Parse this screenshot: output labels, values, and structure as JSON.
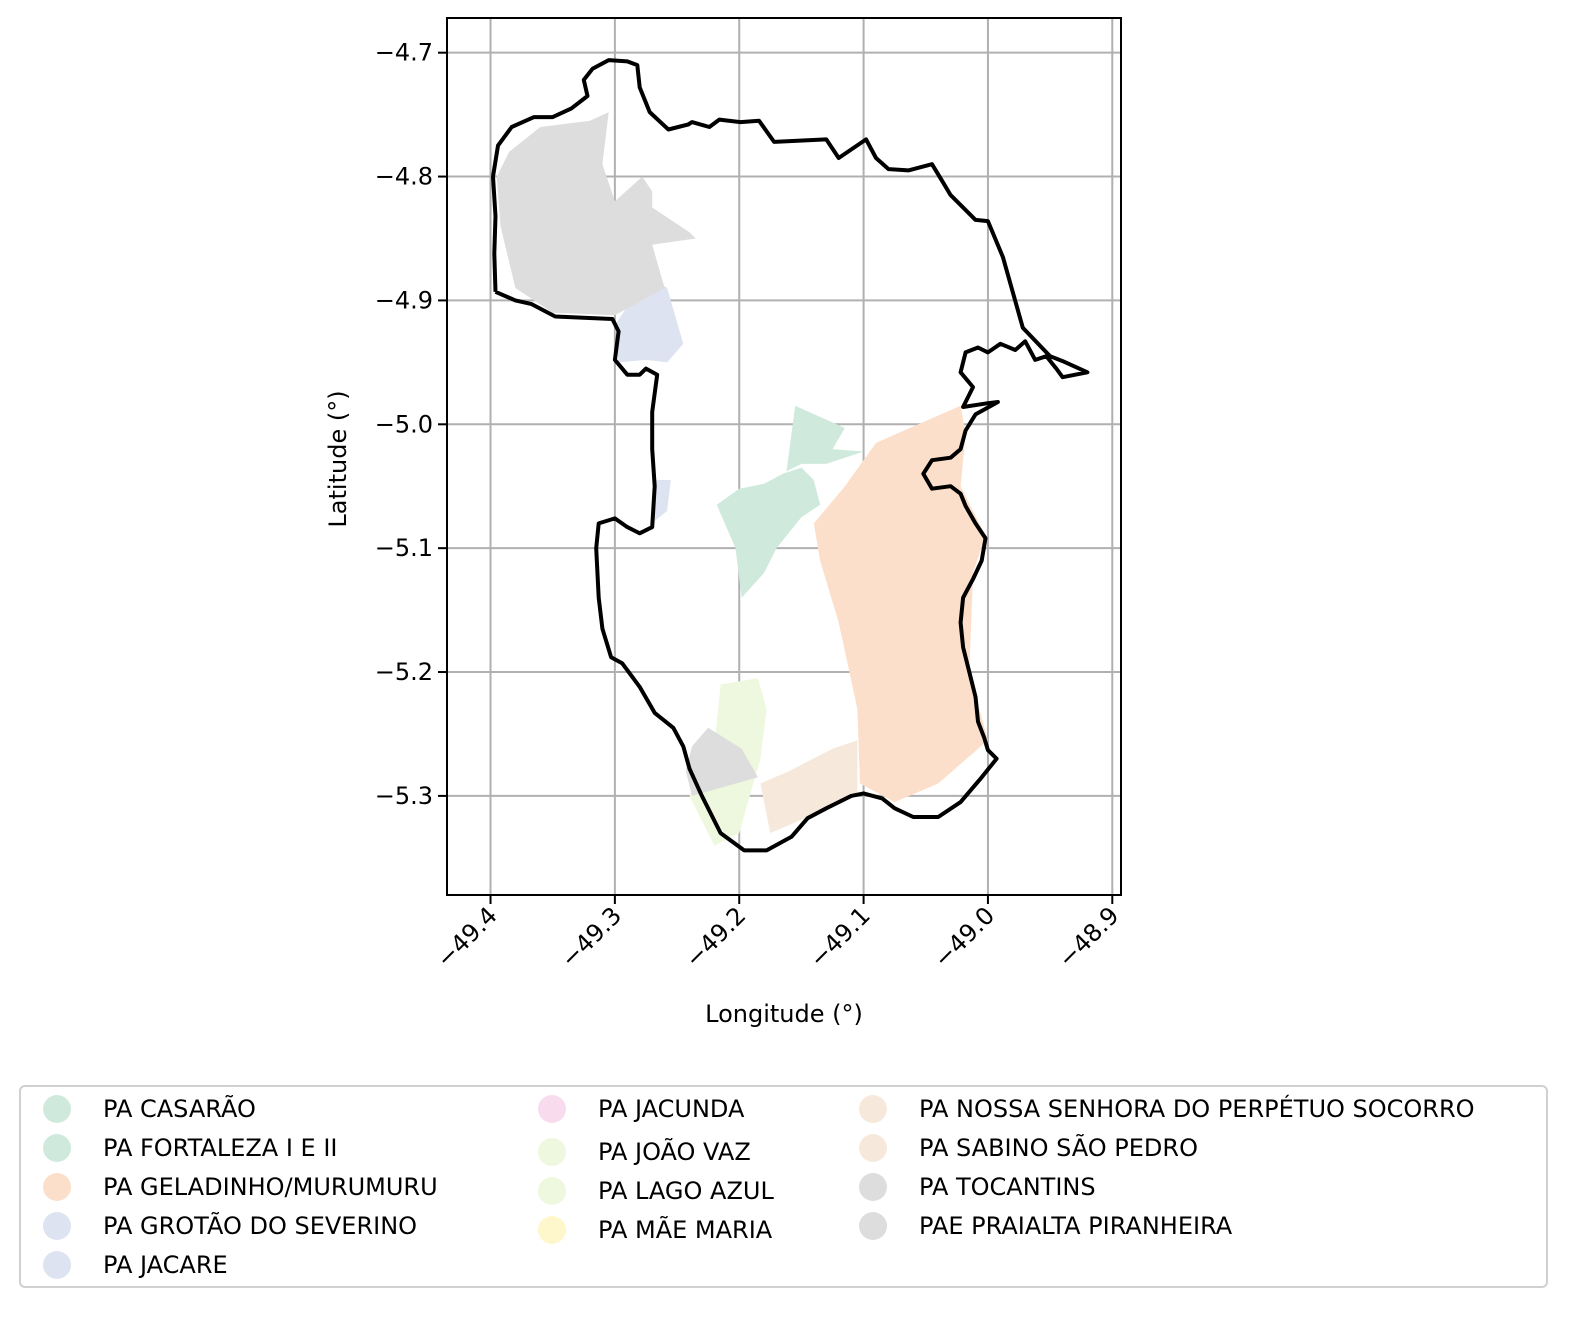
{
  "chart_data": {
    "type": "map",
    "xlabel": "Longitude (°)",
    "ylabel": "Latitude (°)",
    "xlim": [
      -49.435,
      -48.893
    ],
    "ylim": [
      -5.38,
      -4.672
    ],
    "x_ticks": [
      {
        "value": -49.4,
        "label": "−49.4"
      },
      {
        "value": -49.3,
        "label": "−49.3"
      },
      {
        "value": -49.2,
        "label": "−49.2"
      },
      {
        "value": -49.1,
        "label": "−49.1"
      },
      {
        "value": -49.0,
        "label": "−49.0"
      },
      {
        "value": -48.9,
        "label": "−48.9"
      }
    ],
    "y_ticks": [
      {
        "value": -4.7,
        "label": "−4.7"
      },
      {
        "value": -4.8,
        "label": "−4.8"
      },
      {
        "value": -4.9,
        "label": "−4.9"
      },
      {
        "value": -5.0,
        "label": "−5.0"
      },
      {
        "value": -5.1,
        "label": "−5.1"
      },
      {
        "value": -5.2,
        "label": "−5.2"
      },
      {
        "value": -5.3,
        "label": "−5.3"
      }
    ],
    "grid": true,
    "legend_position": "bottom",
    "boundary": [
      [
        -49.396,
        -4.893
      ],
      [
        -49.397,
        -4.862
      ],
      [
        -49.396,
        -4.832
      ],
      [
        -49.398,
        -4.8
      ],
      [
        -49.394,
        -4.775
      ],
      [
        -49.383,
        -4.76
      ],
      [
        -49.365,
        -4.752
      ],
      [
        -49.35,
        -4.752
      ],
      [
        -49.335,
        -4.745
      ],
      [
        -49.322,
        -4.735
      ],
      [
        -49.325,
        -4.722
      ],
      [
        -49.318,
        -4.713
      ],
      [
        -49.305,
        -4.706
      ],
      [
        -49.29,
        -4.707
      ],
      [
        -49.282,
        -4.71
      ],
      [
        -49.28,
        -4.728
      ],
      [
        -49.272,
        -4.748
      ],
      [
        -49.257,
        -4.762
      ],
      [
        -49.241,
        -4.758
      ],
      [
        -49.238,
        -4.756
      ],
      [
        -49.224,
        -4.76
      ],
      [
        -49.216,
        -4.754
      ],
      [
        -49.199,
        -4.756
      ],
      [
        -49.184,
        -4.755
      ],
      [
        -49.172,
        -4.772
      ],
      [
        -49.13,
        -4.77
      ],
      [
        -49.12,
        -4.785
      ],
      [
        -49.098,
        -4.77
      ],
      [
        -49.09,
        -4.785
      ],
      [
        -49.08,
        -4.794
      ],
      [
        -49.064,
        -4.795
      ],
      [
        -49.045,
        -4.79
      ],
      [
        -49.036,
        -4.805
      ],
      [
        -49.03,
        -4.815
      ],
      [
        -49.015,
        -4.83
      ],
      [
        -49.01,
        -4.835
      ],
      [
        -49.0,
        -4.836
      ],
      [
        -48.988,
        -4.865
      ],
      [
        -48.972,
        -4.922
      ],
      [
        -48.95,
        -4.945
      ],
      [
        -48.94,
        -4.949
      ],
      [
        -48.92,
        -4.958
      ],
      [
        -48.94,
        -4.962
      ],
      [
        -48.945,
        -4.955
      ],
      [
        -48.953,
        -4.945
      ],
      [
        -48.962,
        -4.948
      ],
      [
        -48.97,
        -4.933
      ],
      [
        -48.978,
        -4.94
      ],
      [
        -48.99,
        -4.935
      ],
      [
        -49.0,
        -4.942
      ],
      [
        -49.008,
        -4.938
      ],
      [
        -49.018,
        -4.942
      ],
      [
        -49.022,
        -4.958
      ],
      [
        -49.012,
        -4.97
      ],
      [
        -49.02,
        -4.986
      ],
      [
        -49.0,
        -4.983
      ],
      [
        -48.992,
        -4.982
      ],
      [
        -49.01,
        -4.992
      ],
      [
        -49.018,
        -5.005
      ],
      [
        -49.022,
        -5.02
      ],
      [
        -49.03,
        -5.027
      ],
      [
        -49.045,
        -5.029
      ],
      [
        -49.052,
        -5.04
      ],
      [
        -49.045,
        -5.052
      ],
      [
        -49.03,
        -5.05
      ],
      [
        -49.022,
        -5.056
      ],
      [
        -49.018,
        -5.066
      ],
      [
        -49.01,
        -5.08
      ],
      [
        -49.002,
        -5.092
      ],
      [
        -49.005,
        -5.11
      ],
      [
        -49.012,
        -5.125
      ],
      [
        -49.02,
        -5.14
      ],
      [
        -49.022,
        -5.16
      ],
      [
        -49.02,
        -5.18
      ],
      [
        -49.015,
        -5.2
      ],
      [
        -49.01,
        -5.22
      ],
      [
        -49.008,
        -5.24
      ],
      [
        -49.003,
        -5.253
      ],
      [
        -49.0,
        -5.263
      ],
      [
        -48.993,
        -5.27
      ],
      [
        -49.005,
        -5.285
      ],
      [
        -49.022,
        -5.305
      ],
      [
        -49.04,
        -5.317
      ],
      [
        -49.06,
        -5.317
      ],
      [
        -49.075,
        -5.31
      ],
      [
        -49.085,
        -5.302
      ],
      [
        -49.1,
        -5.298
      ],
      [
        -49.11,
        -5.3
      ],
      [
        -49.13,
        -5.31
      ],
      [
        -49.145,
        -5.318
      ],
      [
        -49.158,
        -5.333
      ],
      [
        -49.178,
        -5.344
      ],
      [
        -49.196,
        -5.344
      ],
      [
        -49.215,
        -5.33
      ],
      [
        -49.23,
        -5.3
      ],
      [
        -49.24,
        -5.278
      ],
      [
        -49.245,
        -5.26
      ],
      [
        -49.253,
        -5.245
      ],
      [
        -49.268,
        -5.233
      ],
      [
        -49.28,
        -5.212
      ],
      [
        -49.294,
        -5.193
      ],
      [
        -49.303,
        -5.188
      ],
      [
        -49.31,
        -5.165
      ],
      [
        -49.313,
        -5.14
      ],
      [
        -49.315,
        -5.1
      ],
      [
        -49.313,
        -5.08
      ],
      [
        -49.3,
        -5.076
      ],
      [
        -49.29,
        -5.083
      ],
      [
        -49.28,
        -5.088
      ],
      [
        -49.27,
        -5.083
      ],
      [
        -49.268,
        -5.05
      ],
      [
        -49.27,
        -5.02
      ],
      [
        -49.27,
        -4.99
      ],
      [
        -49.266,
        -4.96
      ],
      [
        -49.275,
        -4.955
      ],
      [
        -49.28,
        -4.96
      ],
      [
        -49.29,
        -4.96
      ],
      [
        -49.3,
        -4.948
      ],
      [
        -49.297,
        -4.925
      ],
      [
        -49.302,
        -4.915
      ],
      [
        -49.348,
        -4.913
      ],
      [
        -49.367,
        -4.903
      ],
      [
        -49.38,
        -4.9
      ],
      [
        -49.396,
        -4.893
      ]
    ],
    "regions": [
      {
        "name": "PA CASARÃO",
        "color": "#cfeadd",
        "polygon": [
          [
            -49.155,
            -4.985
          ],
          [
            -49.115,
            -5.003
          ],
          [
            -49.125,
            -5.02
          ],
          [
            -49.1,
            -5.022
          ],
          [
            -49.13,
            -5.032
          ],
          [
            -49.15,
            -5.032
          ],
          [
            -49.162,
            -5.038
          ]
        ]
      },
      {
        "name": "PA FORTALEZA I E II",
        "color": "#cfeadd",
        "polygon": [
          [
            -49.18,
            -5.048
          ],
          [
            -49.165,
            -5.04
          ],
          [
            -49.15,
            -5.035
          ],
          [
            -49.14,
            -5.045
          ],
          [
            -49.135,
            -5.065
          ],
          [
            -49.15,
            -5.075
          ],
          [
            -49.17,
            -5.1
          ],
          [
            -49.18,
            -5.12
          ],
          [
            -49.198,
            -5.14
          ],
          [
            -49.203,
            -5.1
          ],
          [
            -49.218,
            -5.065
          ],
          [
            -49.2,
            -5.052
          ]
        ]
      },
      {
        "name": "PA GELADINHO/MURUMURU",
        "color": "#fcdfca",
        "polygon": [
          [
            -49.022,
            -4.985
          ],
          [
            -49.09,
            -5.015
          ],
          [
            -49.115,
            -5.05
          ],
          [
            -49.14,
            -5.08
          ],
          [
            -49.135,
            -5.11
          ],
          [
            -49.12,
            -5.16
          ],
          [
            -49.105,
            -5.23
          ],
          [
            -49.103,
            -5.29
          ],
          [
            -49.075,
            -5.305
          ],
          [
            -49.04,
            -5.29
          ],
          [
            -49.0,
            -5.255
          ],
          [
            -49.015,
            -5.2
          ],
          [
            -49.012,
            -5.12
          ],
          [
            -49.002,
            -5.09
          ],
          [
            -49.022,
            -5.05
          ],
          [
            -49.018,
            -5.008
          ]
        ]
      },
      {
        "name": "PA GROTÃO DO SEVERINO",
        "color": "#dee3f1",
        "polygon": [
          [
            -49.272,
            -4.88
          ],
          [
            -49.29,
            -4.905
          ],
          [
            -49.3,
            -4.92
          ],
          [
            -49.297,
            -4.95
          ],
          [
            -49.275,
            -4.948
          ],
          [
            -49.258,
            -4.95
          ],
          [
            -49.245,
            -4.935
          ],
          [
            -49.258,
            -4.89
          ]
        ]
      },
      {
        "name": "PA JACARE",
        "color": "#dee3f1",
        "polygon": [
          [
            -49.268,
            -5.045
          ],
          [
            -49.255,
            -5.045
          ],
          [
            -49.258,
            -5.07
          ],
          [
            -49.268,
            -5.078
          ]
        ]
      },
      {
        "name": "PA JOÃO VAZ",
        "color": "#eef8de",
        "polygon": [
          [
            -49.215,
            -5.21
          ],
          [
            -49.185,
            -5.205
          ],
          [
            -49.178,
            -5.23
          ],
          [
            -49.183,
            -5.27
          ],
          [
            -49.2,
            -5.33
          ],
          [
            -49.22,
            -5.34
          ],
          [
            -49.24,
            -5.3
          ],
          [
            -49.22,
            -5.26
          ]
        ]
      },
      {
        "name": "PA SABINO SÃO PEDRO",
        "color": "#f6e9dc",
        "polygon": [
          [
            -49.105,
            -5.255
          ],
          [
            -49.125,
            -5.262
          ],
          [
            -49.16,
            -5.28
          ],
          [
            -49.183,
            -5.29
          ],
          [
            -49.175,
            -5.33
          ],
          [
            -49.14,
            -5.315
          ],
          [
            -49.105,
            -5.298
          ]
        ]
      },
      {
        "name": "PA TOCANTINS",
        "color": "#dddddd",
        "polygon": [
          [
            -49.225,
            -5.245
          ],
          [
            -49.238,
            -5.26
          ],
          [
            -49.243,
            -5.28
          ],
          [
            -49.238,
            -5.3
          ],
          [
            -49.185,
            -5.285
          ],
          [
            -49.198,
            -5.262
          ]
        ]
      },
      {
        "name": "PAE PRAIALTA PIRANHEIRA",
        "color": "#dddddd",
        "polygon": [
          [
            -49.385,
            -4.78
          ],
          [
            -49.36,
            -4.76
          ],
          [
            -49.32,
            -4.755
          ],
          [
            -49.305,
            -4.748
          ],
          [
            -49.31,
            -4.79
          ],
          [
            -49.3,
            -4.82
          ],
          [
            -49.278,
            -4.8
          ],
          [
            -49.27,
            -4.812
          ],
          [
            -49.27,
            -4.825
          ],
          [
            -49.24,
            -4.845
          ],
          [
            -49.235,
            -4.85
          ],
          [
            -49.27,
            -4.855
          ],
          [
            -49.26,
            -4.89
          ],
          [
            -49.3,
            -4.912
          ],
          [
            -49.35,
            -4.91
          ],
          [
            -49.38,
            -4.89
          ],
          [
            -49.392,
            -4.84
          ],
          [
            -49.395,
            -4.8
          ]
        ]
      }
    ],
    "legend": [
      {
        "label": "PA CASARÃO",
        "color": "#cfeadd"
      },
      {
        "label": "PA FORTALEZA I E II",
        "color": "#cfeadd"
      },
      {
        "label": "PA GELADINHO/MURUMURU",
        "color": "#fcdfca"
      },
      {
        "label": "PA GROTÃO DO SEVERINO",
        "color": "#dee3f1"
      },
      {
        "label": "PA JACARE",
        "color": "#dee3f1"
      },
      {
        "label": "PA JACUNDA",
        "color": "#f8dced"
      },
      {
        "label": "PA JOÃO VAZ",
        "color": "#eef8de"
      },
      {
        "label": "PA LAGO AZUL",
        "color": "#eef8de"
      },
      {
        "label": "PA MÃE MARIA",
        "color": "#fff7cc"
      },
      {
        "label": "PA NOSSA SENHORA  DO PERPÉTUO SOCORRO",
        "color": "#f6e9dc"
      },
      {
        "label": "PA SABINO SÃO PEDRO",
        "color": "#f6e9dc"
      },
      {
        "label": "PA TOCANTINS",
        "color": "#dddddd"
      },
      {
        "label": "PAE PRAIALTA PIRANHEIRA",
        "color": "#dddddd"
      }
    ]
  }
}
